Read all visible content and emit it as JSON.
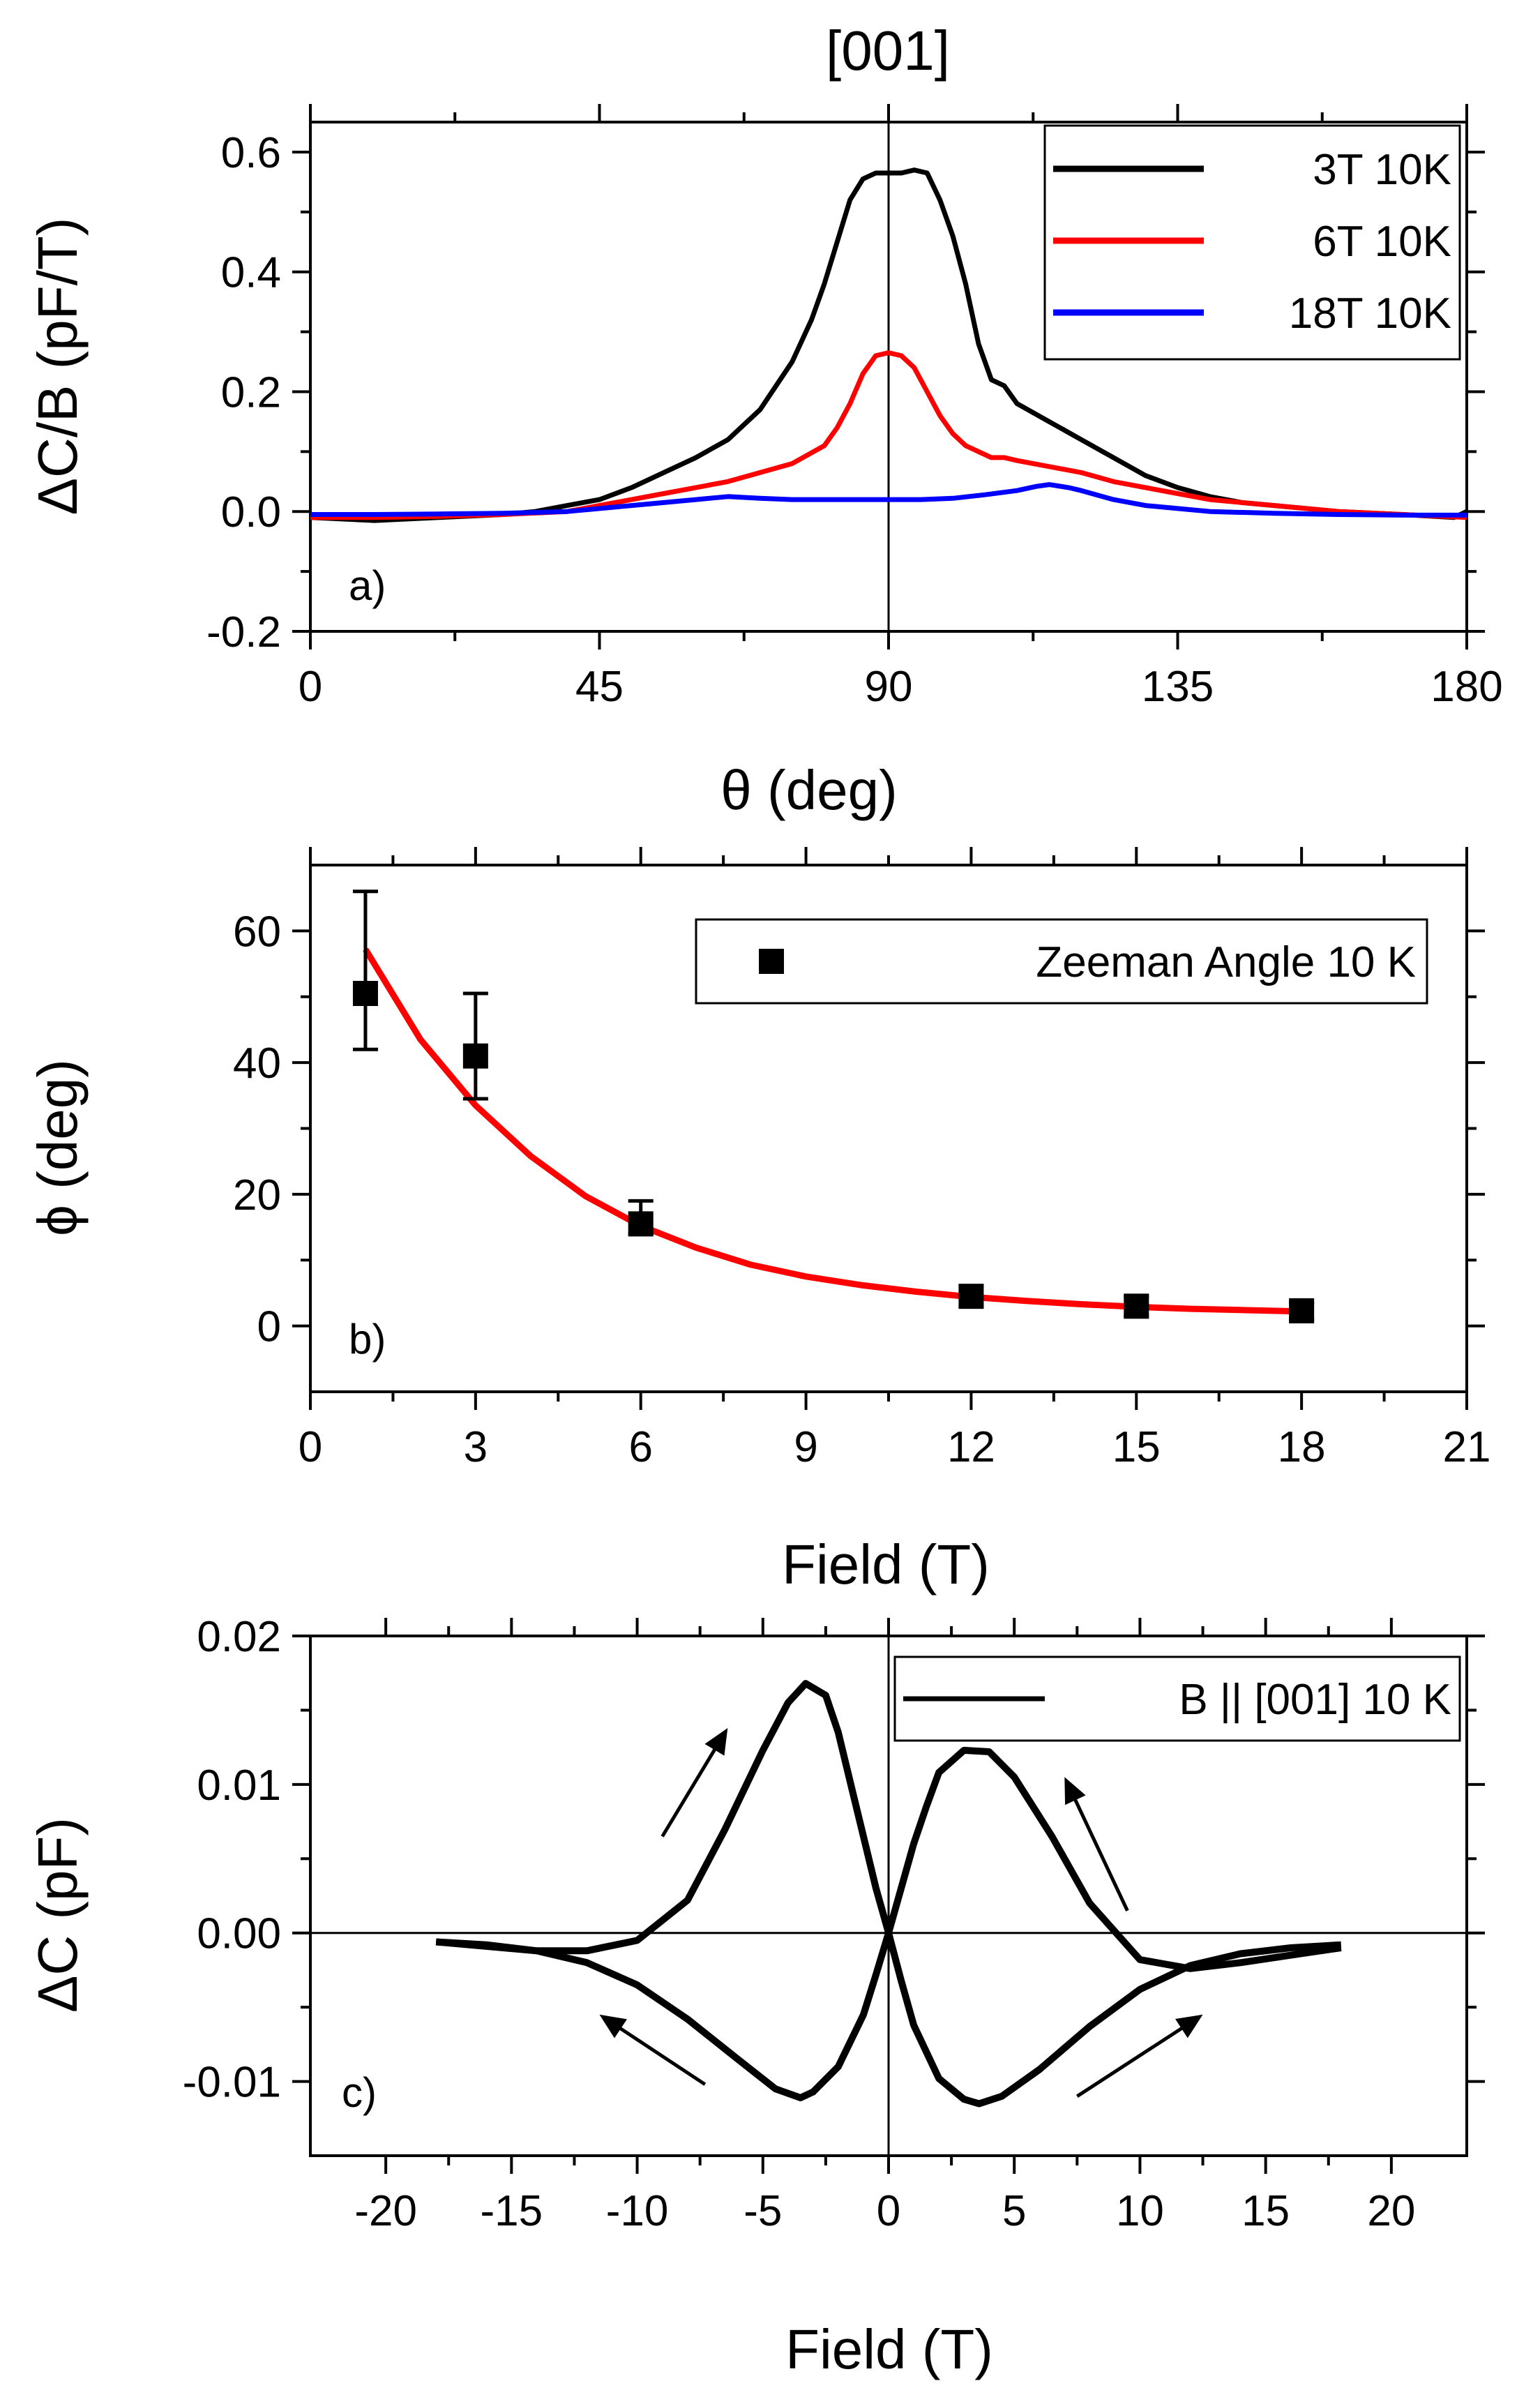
{
  "chart_data": [
    {
      "id": "a",
      "type": "line",
      "title": "[001]",
      "panel_label": "a)",
      "xlabel": "θ (deg)",
      "ylabel": "ΔC/B (pF/T)",
      "xlim": [
        0,
        180
      ],
      "ylim": [
        -0.2,
        0.65
      ],
      "xticks": [
        0,
        45,
        90,
        135,
        180
      ],
      "yticks": [
        -0.2,
        0.0,
        0.2,
        0.4,
        0.6
      ],
      "vline": 90,
      "legend_position": "top-right",
      "series": [
        {
          "name": "3T 10K",
          "color": "#000000",
          "x": [
            0,
            10,
            20,
            30,
            35,
            40,
            45,
            50,
            55,
            60,
            65,
            70,
            75,
            78,
            80,
            82,
            84,
            86,
            88,
            90,
            92,
            94,
            96,
            98,
            100,
            102,
            104,
            106,
            108,
            110,
            115,
            120,
            125,
            130,
            135,
            140,
            145,
            150,
            160,
            170,
            178,
            180
          ],
          "y": [
            -0.01,
            -0.015,
            -0.01,
            -0.005,
            0.0,
            0.01,
            0.02,
            0.04,
            0.065,
            0.09,
            0.12,
            0.17,
            0.25,
            0.32,
            0.38,
            0.45,
            0.52,
            0.555,
            0.565,
            0.565,
            0.565,
            0.57,
            0.565,
            0.52,
            0.46,
            0.38,
            0.28,
            0.22,
            0.21,
            0.18,
            0.15,
            0.12,
            0.09,
            0.06,
            0.04,
            0.025,
            0.015,
            0.01,
            0.0,
            -0.005,
            -0.01,
            0.0
          ]
        },
        {
          "name": "6T 10K",
          "color": "#ff0000",
          "x": [
            0,
            10,
            20,
            30,
            40,
            45,
            50,
            55,
            60,
            65,
            70,
            75,
            80,
            82,
            84,
            86,
            88,
            90,
            92,
            94,
            96,
            98,
            100,
            102,
            104,
            106,
            108,
            110,
            115,
            120,
            125,
            130,
            135,
            140,
            150,
            160,
            170,
            180
          ],
          "y": [
            -0.01,
            -0.01,
            -0.008,
            -0.005,
            0.0,
            0.01,
            0.02,
            0.03,
            0.04,
            0.05,
            0.065,
            0.08,
            0.11,
            0.14,
            0.18,
            0.23,
            0.26,
            0.265,
            0.26,
            0.24,
            0.2,
            0.16,
            0.13,
            0.11,
            0.1,
            0.09,
            0.09,
            0.085,
            0.075,
            0.065,
            0.05,
            0.04,
            0.03,
            0.02,
            0.01,
            0.0,
            -0.005,
            -0.01
          ]
        },
        {
          "name": "18T 10K",
          "color": "#0000ff",
          "x": [
            0,
            10,
            20,
            30,
            40,
            50,
            55,
            60,
            65,
            70,
            75,
            80,
            85,
            90,
            95,
            100,
            105,
            110,
            113,
            115,
            118,
            120,
            125,
            130,
            135,
            140,
            150,
            160,
            170,
            180
          ],
          "y": [
            -0.005,
            -0.005,
            -0.004,
            -0.003,
            0.0,
            0.01,
            0.015,
            0.02,
            0.025,
            0.022,
            0.02,
            0.02,
            0.02,
            0.02,
            0.02,
            0.022,
            0.028,
            0.035,
            0.042,
            0.045,
            0.04,
            0.035,
            0.02,
            0.01,
            0.005,
            0.0,
            -0.003,
            -0.005,
            -0.006,
            -0.006
          ]
        }
      ]
    },
    {
      "id": "b",
      "type": "scatter",
      "panel_label": "b)",
      "xlabel": "Field (T)",
      "ylabel": "ϕ (deg)",
      "xlim": [
        0,
        21
      ],
      "ylim": [
        -10,
        70
      ],
      "xticks": [
        0,
        3,
        6,
        9,
        12,
        15,
        18,
        21
      ],
      "yticks": [
        0,
        20,
        40,
        60
      ],
      "legend_position": "top-right",
      "series": [
        {
          "name": "Zeeman Angle 10 K",
          "color": "#000000",
          "x": [
            1,
            3,
            6,
            12,
            15,
            18
          ],
          "y": [
            50.5,
            41,
            15.5,
            4.5,
            3,
            2.3
          ],
          "err_low": [
            42,
            34.5,
            14,
            3,
            1.5,
            1.0
          ],
          "err_high": [
            66,
            50.5,
            19,
            6,
            4.5,
            3.5
          ]
        }
      ],
      "fit": {
        "color": "#ff0000",
        "x": [
          1,
          2,
          3,
          4,
          5,
          6,
          7,
          8,
          9,
          10,
          11,
          12,
          13,
          14,
          15,
          16,
          17,
          18
        ],
        "y": [
          57.2,
          43.5,
          33.5,
          25.8,
          19.7,
          15.2,
          11.9,
          9.3,
          7.5,
          6.2,
          5.2,
          4.4,
          3.8,
          3.3,
          2.9,
          2.6,
          2.4,
          2.2
        ]
      }
    },
    {
      "id": "c",
      "type": "line",
      "panel_label": "c)",
      "xlabel": "Field (T)",
      "ylabel": "ΔC (pF)",
      "xlim": [
        -23,
        23
      ],
      "ylim": [
        -0.015,
        0.02
      ],
      "xticks": [
        -20,
        -15,
        -10,
        -5,
        0,
        5,
        10,
        15,
        20
      ],
      "yticks": [
        -0.01,
        0.0,
        0.01,
        0.02
      ],
      "ytick_labels": [
        "-0.01",
        "0.00",
        "0.01",
        "0.02"
      ],
      "vline": 0,
      "hline": 0,
      "legend_position": "top-right",
      "series": [
        {
          "name": "B || [001] 10 K",
          "color": "#000000",
          "branches": [
            {
              "x": [
                -18,
                -16,
                -14,
                -12,
                -10,
                -8,
                -6.5,
                -5,
                -4,
                -3.3,
                -2.5,
                -2,
                -1.5,
                -1,
                -0.5,
                0,
                0.5,
                1,
                2,
                3,
                3.6,
                4.5,
                6,
                8,
                10,
                12,
                14,
                16,
                18
              ],
              "y": [
                -0.0006,
                -0.0009,
                -0.0012,
                -0.0012,
                -0.0005,
                0.0022,
                0.007,
                0.0123,
                0.0155,
                0.0168,
                0.016,
                0.0135,
                0.01,
                0.0065,
                0.003,
                0.0,
                -0.0032,
                -0.0062,
                -0.0098,
                -0.0112,
                -0.0115,
                -0.011,
                -0.0092,
                -0.0063,
                -0.0038,
                -0.0022,
                -0.0014,
                -0.001,
                -0.0008
              ]
            },
            {
              "x": [
                18,
                16,
                14,
                12,
                10,
                8,
                6.5,
                5,
                4,
                3,
                2,
                1.5,
                1,
                0.5,
                0,
                -0.5,
                -1,
                -2,
                -3,
                -3.5,
                -4.5,
                -6,
                -8,
                -10,
                -12,
                -14,
                -16,
                -18
              ],
              "y": [
                -0.001,
                -0.0015,
                -0.002,
                -0.0024,
                -0.0018,
                0.002,
                0.0065,
                0.0105,
                0.0122,
                0.0123,
                0.0108,
                0.0085,
                0.006,
                0.003,
                0.0,
                -0.0028,
                -0.0055,
                -0.009,
                -0.0107,
                -0.0111,
                -0.0105,
                -0.0085,
                -0.0058,
                -0.0035,
                -0.002,
                -0.0012,
                -0.0008,
                -0.0006
              ]
            }
          ]
        }
      ],
      "arrows": [
        {
          "from": [
            -9.0,
            0.0065
          ],
          "to": [
            -6.4,
            0.0138
          ]
        },
        {
          "from": [
            9.5,
            0.0015
          ],
          "to": [
            7.0,
            0.0105
          ]
        },
        {
          "from": [
            -7.3,
            -0.0102
          ],
          "to": [
            -11.5,
            -0.0055
          ]
        },
        {
          "from": [
            7.5,
            -0.011
          ],
          "to": [
            12.5,
            -0.0055
          ]
        }
      ]
    }
  ]
}
